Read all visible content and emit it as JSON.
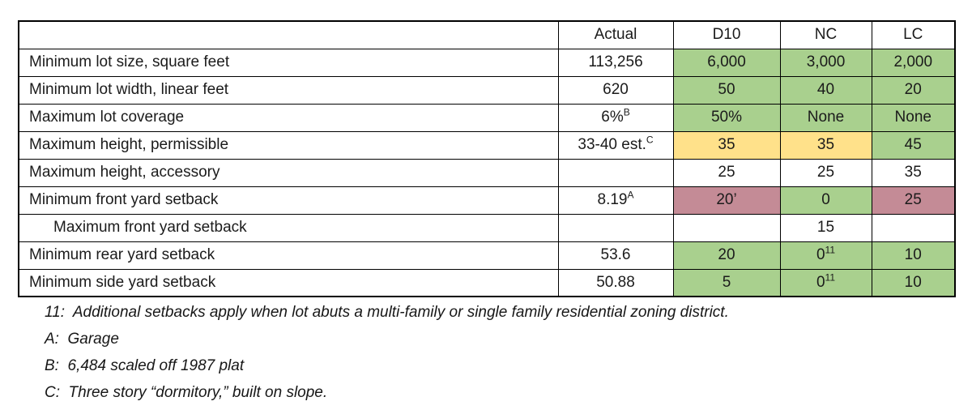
{
  "colors": {
    "green": "#a9d08e",
    "yellow": "#ffe18a",
    "rose": "#c48b96",
    "white": "#ffffff"
  },
  "table": {
    "columns": [
      "",
      "Actual",
      "D10",
      "NC",
      "LC"
    ],
    "rows": [
      {
        "label": "Minimum lot size, square feet",
        "indent": false,
        "actual": {
          "text": "113,256",
          "sup": ""
        },
        "zones": [
          {
            "text": "6,000",
            "sup": "",
            "color": "green"
          },
          {
            "text": "3,000",
            "sup": "",
            "color": "green"
          },
          {
            "text": "2,000",
            "sup": "",
            "color": "green"
          }
        ]
      },
      {
        "label": "Minimum lot width, linear feet",
        "indent": false,
        "actual": {
          "text": "620",
          "sup": ""
        },
        "zones": [
          {
            "text": "50",
            "sup": "",
            "color": "green"
          },
          {
            "text": "40",
            "sup": "",
            "color": "green"
          },
          {
            "text": "20",
            "sup": "",
            "color": "green"
          }
        ]
      },
      {
        "label": "Maximum lot coverage",
        "indent": false,
        "actual": {
          "text": "6%",
          "sup": "B"
        },
        "zones": [
          {
            "text": "50%",
            "sup": "",
            "color": "green"
          },
          {
            "text": "None",
            "sup": "",
            "color": "green"
          },
          {
            "text": "None",
            "sup": "",
            "color": "green"
          }
        ]
      },
      {
        "label": "Maximum height, permissible",
        "indent": false,
        "actual": {
          "text": "33-40 est.",
          "sup": "C"
        },
        "zones": [
          {
            "text": "35",
            "sup": "",
            "color": "yellow"
          },
          {
            "text": "35",
            "sup": "",
            "color": "yellow"
          },
          {
            "text": "45",
            "sup": "",
            "color": "green"
          }
        ]
      },
      {
        "label": "Maximum height, accessory",
        "indent": false,
        "actual": {
          "text": "",
          "sup": ""
        },
        "zones": [
          {
            "text": "25",
            "sup": "",
            "color": "white"
          },
          {
            "text": "25",
            "sup": "",
            "color": "white"
          },
          {
            "text": "35",
            "sup": "",
            "color": "white"
          }
        ]
      },
      {
        "label": "Minimum front yard setback",
        "indent": false,
        "actual": {
          "text": "8.19",
          "sup": "A"
        },
        "zones": [
          {
            "text": "20’",
            "sup": "",
            "color": "rose"
          },
          {
            "text": "0",
            "sup": "",
            "color": "green"
          },
          {
            "text": "25",
            "sup": "",
            "color": "rose"
          }
        ]
      },
      {
        "label": "Maximum front yard setback",
        "indent": true,
        "actual": {
          "text": "",
          "sup": ""
        },
        "zones": [
          {
            "text": "",
            "sup": "",
            "color": "white"
          },
          {
            "text": "15",
            "sup": "",
            "color": "white"
          },
          {
            "text": "",
            "sup": "",
            "color": "white"
          }
        ]
      },
      {
        "label": "Minimum rear yard setback",
        "indent": false,
        "actual": {
          "text": "53.6",
          "sup": ""
        },
        "zones": [
          {
            "text": "20",
            "sup": "",
            "color": "green"
          },
          {
            "text": "0",
            "sup": "11",
            "color": "green"
          },
          {
            "text": "10",
            "sup": "",
            "color": "green"
          }
        ]
      },
      {
        "label": "Minimum side yard setback",
        "indent": false,
        "actual": {
          "text": "50.88",
          "sup": ""
        },
        "zones": [
          {
            "text": "5",
            "sup": "",
            "color": "green"
          },
          {
            "text": "0",
            "sup": "11",
            "color": "green"
          },
          {
            "text": "10",
            "sup": "",
            "color": "green"
          }
        ]
      }
    ]
  },
  "footnotes": [
    {
      "key": "11",
      "text": "Additional setbacks apply when lot abuts a multi-family or single family residential zoning district."
    },
    {
      "key": "A",
      "text": "Garage"
    },
    {
      "key": "B",
      "text": "6,484 scaled off 1987 plat"
    },
    {
      "key": "C",
      "text": "Three story “dormitory,” built on slope."
    }
  ]
}
